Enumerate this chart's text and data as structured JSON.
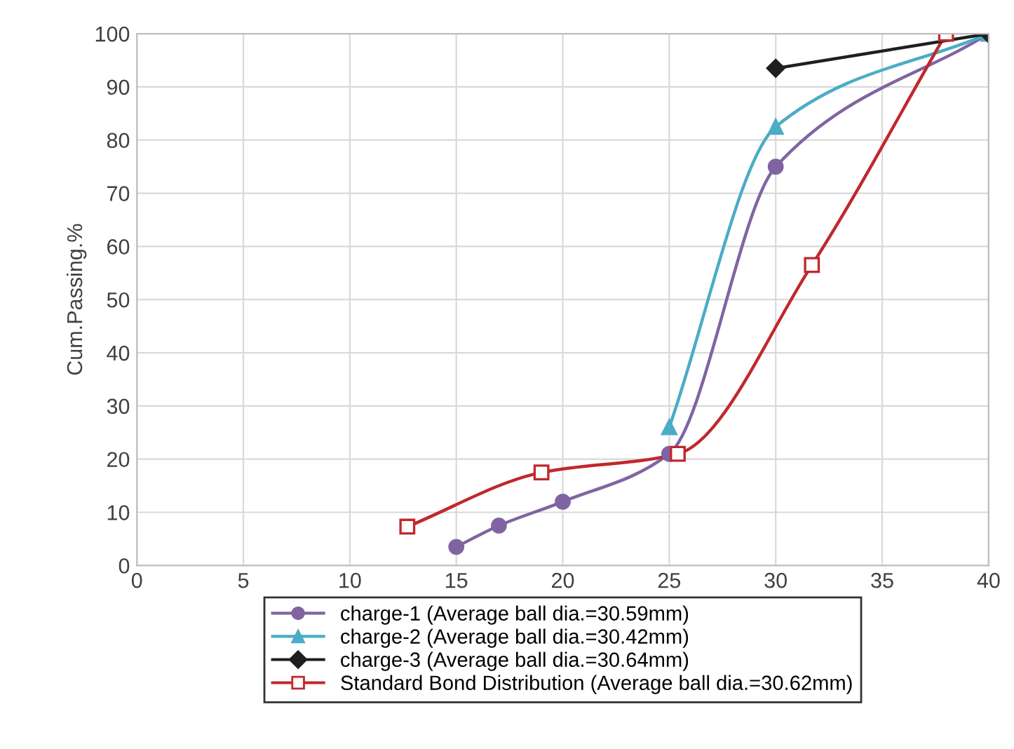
{
  "chart_data": {
    "type": "line",
    "ylabel": "Cum.Passing.%",
    "xlim": [
      0,
      40
    ],
    "xticks": [
      0,
      5,
      10,
      15,
      20,
      25,
      30,
      35,
      40
    ],
    "ylim": [
      0,
      100
    ],
    "yticks": [
      0,
      10,
      20,
      30,
      40,
      50,
      60,
      70,
      80,
      90,
      100
    ],
    "grid": true,
    "legend": "bottom",
    "line_style": "solid",
    "series": [
      {
        "name": "charge-1 (Average ball dia.=30.59mm)",
        "color": "#8064a2",
        "marker": "circle",
        "x": [
          15,
          17,
          20,
          25,
          30,
          40
        ],
        "values": [
          3.5,
          7.5,
          12,
          21,
          75,
          100
        ]
      },
      {
        "name": "charge-2 (Average ball dia.=30.42mm)",
        "color": "#4bacc6",
        "marker": "triangle",
        "x": [
          25,
          30,
          40
        ],
        "values": [
          26,
          82.5,
          100
        ]
      },
      {
        "name": "charge-3 (Average ball dia.=30.64mm)",
        "color": "#1f1f1f",
        "marker": "diamond",
        "x": [
          30,
          40
        ],
        "values": [
          93.5,
          100
        ]
      },
      {
        "name": "Standard Bond Distribution (Average ball dia.=30.62mm)",
        "color": "#c0282d",
        "marker": "square",
        "x": [
          12.7,
          19,
          25.4,
          31.7,
          38
        ],
        "values": [
          7.3,
          17.5,
          21,
          56.5,
          100
        ]
      }
    ]
  }
}
